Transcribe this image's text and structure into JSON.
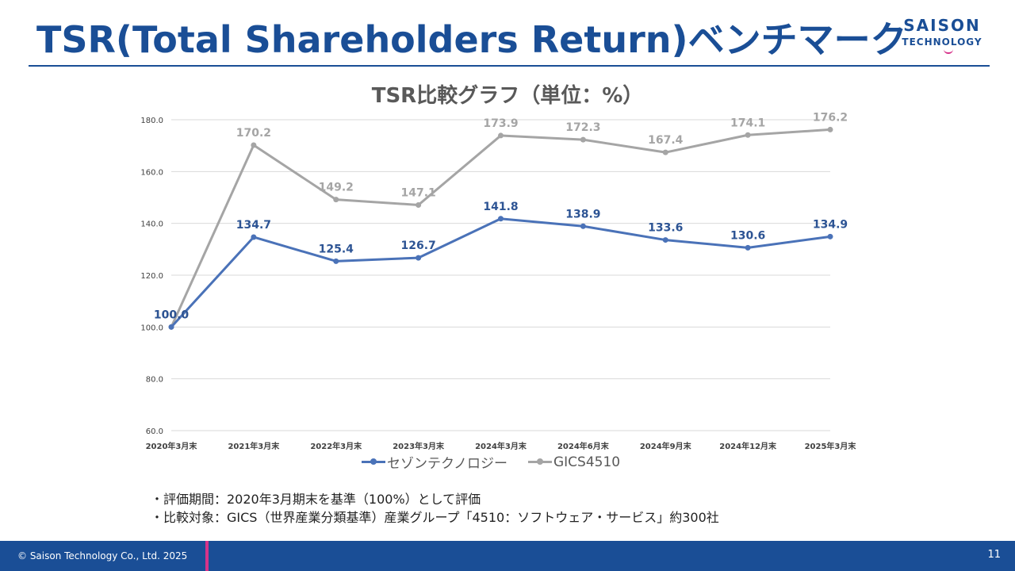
{
  "page": {
    "title": "TSR(Total Shareholders Return)ベンチマーク",
    "logo_top": "SAISON",
    "logo_bottom": "TECHNOLOGY",
    "notes": [
      "・評価期間：2020年3月期末を基準（100%）として評価",
      "・比較対象：GICS（世界産業分類基準）産業グループ「4510：ソフトウェア・サービス」約300社"
    ],
    "footer_copyright": "© Saison Technology Co., Ltd. 2025",
    "page_number": "11",
    "colors": {
      "brand_blue": "#1a4e96",
      "accent_pink": "#d6338a",
      "series_saison": "#4a72b8",
      "series_gics": "#a5a5a5"
    }
  },
  "chart_data": {
    "type": "line",
    "title": "TSR比較グラフ（単位：%）",
    "xlabel": "",
    "ylabel": "",
    "categories": [
      "2020年3月末",
      "2021年3月末",
      "2022年3月末",
      "2023年3月末",
      "2024年3月末",
      "2024年6月末",
      "2024年9月末",
      "2024年12月末",
      "2025年3月末"
    ],
    "ylim": [
      60.0,
      180.0
    ],
    "yticks": [
      "60.0",
      "80.0",
      "100.0",
      "120.0",
      "140.0",
      "160.0",
      "180.0"
    ],
    "ytick_values": [
      60,
      80,
      100,
      120,
      140,
      160,
      180
    ],
    "grid": true,
    "legend_position": "bottom",
    "series": [
      {
        "name": "セゾンテクノロジー",
        "color": "#4a72b8",
        "values": [
          100.0,
          134.7,
          125.4,
          126.7,
          141.8,
          138.9,
          133.6,
          130.6,
          134.9
        ],
        "labels": [
          "100.0",
          "134.7",
          "125.4",
          "126.7",
          "141.8",
          "138.9",
          "133.6",
          "130.6",
          "134.9"
        ],
        "label_color": "#2d5494"
      },
      {
        "name": "GICS4510",
        "color": "#a5a5a5",
        "values": [
          100.0,
          170.2,
          149.2,
          147.1,
          173.9,
          172.3,
          167.4,
          174.1,
          176.2
        ],
        "labels": [
          "100.0",
          "170.2",
          "149.2",
          "147.1",
          "173.9",
          "172.3",
          "167.4",
          "174.1",
          "176.2"
        ],
        "label_color": "#a5a5a5"
      }
    ]
  }
}
